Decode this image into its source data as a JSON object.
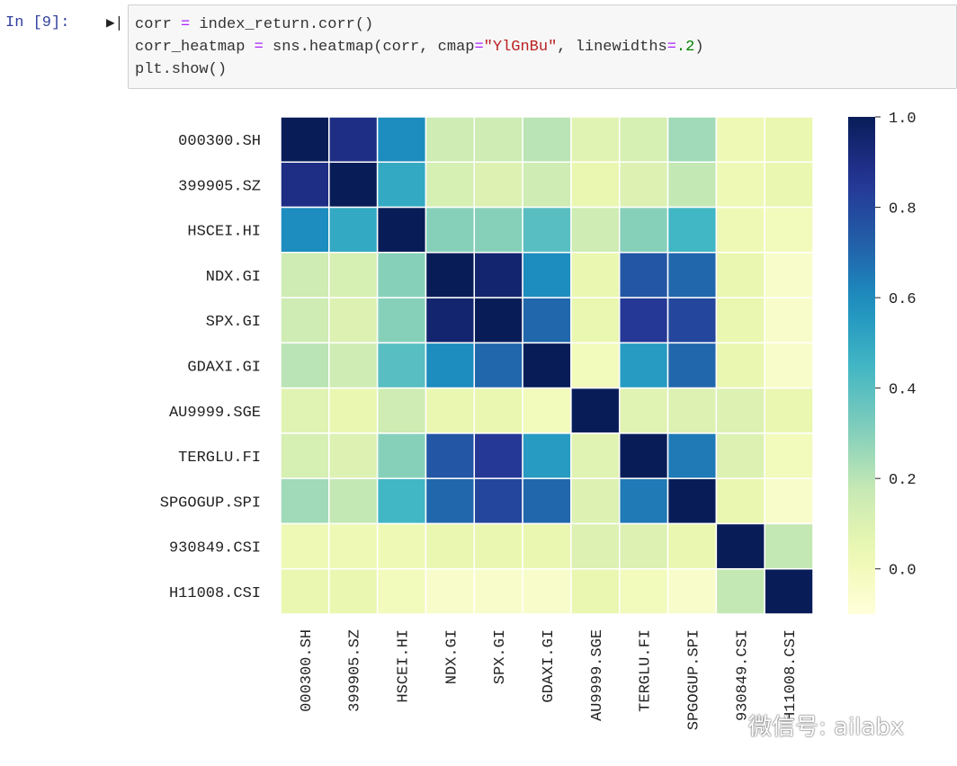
{
  "cell": {
    "prompt": "In  [9]:",
    "code": {
      "l1a": "corr ",
      "l1op": "=",
      "l1b": " index_return.corr()",
      "l2a": "corr_heatmap ",
      "l2op": "=",
      "l2b": " sns.heatmap(corr, cmap",
      "l2op2": "=",
      "l2str": "\"YlGnBu\"",
      "l2c": ", linewidths",
      "l2op3": "=",
      "l2num": ".2",
      "l2d": ")",
      "l3": "plt.show()"
    }
  },
  "watermark": "微信号: ailabx",
  "chart_data": {
    "type": "heatmap",
    "cmap": "YlGnBu",
    "colors": [
      "#ffffd9",
      "#edf8b1",
      "#c7e9b4",
      "#7fcdbb",
      "#41b6c4",
      "#1d91c0",
      "#225ea8",
      "#253494",
      "#081d58"
    ],
    "vmin": -0.1,
    "vmax": 1.0,
    "labels": [
      "000300.SH",
      "399905.SZ",
      "HSCEI.HI",
      "NDX.GI",
      "SPX.GI",
      "GDAXI.GI",
      "AU9999.SGE",
      "TERGLU.FI",
      "SPGOGUP.SPI",
      "930849.CSI",
      "H11008.CSI"
    ],
    "colorbar_ticks": [
      "0.0",
      "0.2",
      "0.4",
      "0.6",
      "0.8",
      "1.0"
    ],
    "values": [
      [
        1.0,
        0.9,
        0.6,
        0.15,
        0.15,
        0.2,
        0.08,
        0.12,
        0.25,
        0.02,
        0.05
      ],
      [
        0.9,
        1.0,
        0.5,
        0.12,
        0.1,
        0.15,
        0.05,
        0.1,
        0.18,
        0.02,
        0.05
      ],
      [
        0.6,
        0.5,
        1.0,
        0.3,
        0.3,
        0.4,
        0.15,
        0.3,
        0.45,
        0.02,
        0.0
      ],
      [
        0.15,
        0.12,
        0.3,
        1.0,
        0.95,
        0.6,
        0.05,
        0.75,
        0.7,
        0.05,
        -0.05
      ],
      [
        0.15,
        0.1,
        0.3,
        0.95,
        1.0,
        0.7,
        0.05,
        0.85,
        0.8,
        0.05,
        -0.05
      ],
      [
        0.2,
        0.15,
        0.4,
        0.6,
        0.7,
        1.0,
        0.0,
        0.55,
        0.7,
        0.05,
        -0.05
      ],
      [
        0.08,
        0.05,
        0.15,
        0.05,
        0.05,
        0.0,
        1.0,
        0.08,
        0.1,
        0.1,
        0.05
      ],
      [
        0.12,
        0.1,
        0.3,
        0.75,
        0.85,
        0.55,
        0.08,
        1.0,
        0.65,
        0.1,
        0.0
      ],
      [
        0.25,
        0.18,
        0.45,
        0.7,
        0.8,
        0.7,
        0.1,
        0.65,
        1.0,
        0.05,
        -0.05
      ],
      [
        0.02,
        0.02,
        0.02,
        0.05,
        0.05,
        0.05,
        0.1,
        0.1,
        0.05,
        1.0,
        0.18
      ],
      [
        0.05,
        0.05,
        0.0,
        -0.05,
        -0.05,
        -0.05,
        0.05,
        0.0,
        -0.05,
        0.18,
        1.0
      ]
    ]
  }
}
